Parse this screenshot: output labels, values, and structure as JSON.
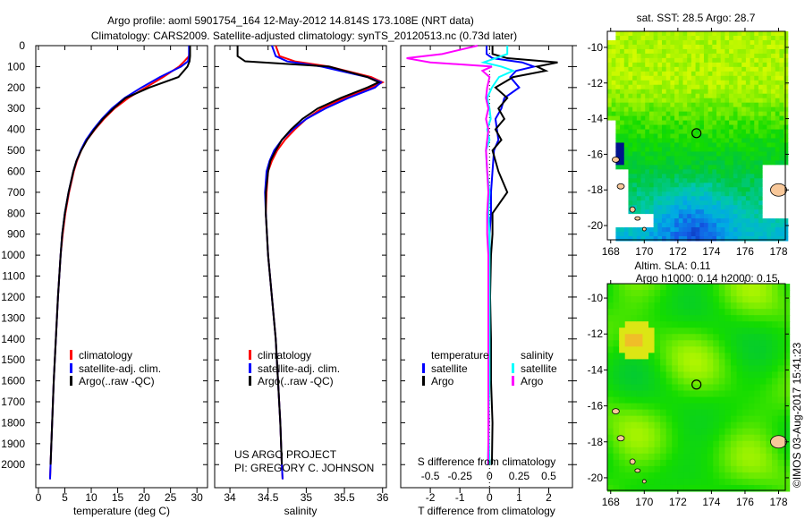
{
  "title": {
    "line1": "Argo profile: aoml 5901754_164 12-May-2012 14.814S 173.108E (NRT data)",
    "line2": "Climatology: CARS2009. Satellite-adjusted climatology: synTS_20120513.nc (0.73d later)"
  },
  "credits": {
    "project": "US ARGO PROJECT",
    "pi": "PI: GREGORY C. JOHNSON",
    "stamp": "©IMOS 03-Aug-2017 15:41:23"
  },
  "colors": {
    "clim": "#ff0000",
    "sat": "#0000ff",
    "argo": "#000000",
    "s_sat": "#00ffff",
    "s_argo": "#ff00ff"
  },
  "chart_data": [
    {
      "type": "line",
      "name": "temperature",
      "xlabel": "temperature (deg C)",
      "xlim": [
        -0.5,
        32
      ],
      "ylim": [
        2110,
        0
      ],
      "xticks": [
        0,
        5,
        10,
        15,
        20,
        25,
        30
      ],
      "yticks": [
        0,
        100,
        200,
        300,
        400,
        500,
        600,
        700,
        800,
        900,
        1000,
        1100,
        1200,
        1300,
        1400,
        1500,
        1600,
        1700,
        1800,
        1900,
        2000
      ],
      "legend": [
        "climatology",
        "satellite-adj. clim.",
        "Argo(..raw -QC)"
      ],
      "depth": [
        0,
        50,
        75,
        100,
        150,
        200,
        250,
        300,
        350,
        400,
        450,
        500,
        550,
        600,
        700,
        800,
        900,
        1000,
        1200,
        1400,
        1600,
        1800,
        2000,
        2070
      ],
      "series": [
        {
          "name": "climatology",
          "color_key": "clim",
          "values": [
            28.6,
            28.5,
            27.6,
            26.6,
            23.6,
            20.3,
            17.0,
            14.4,
            12.4,
            10.7,
            9.2,
            8.1,
            7.3,
            6.7,
            5.8,
            5.1,
            4.6,
            4.2,
            3.7,
            3.3,
            2.9,
            2.6,
            2.3,
            2.2
          ]
        },
        {
          "name": "satellite-adj. clim.",
          "color_key": "sat",
          "values": [
            28.5,
            28.5,
            28.3,
            27.0,
            23.0,
            19.5,
            16.3,
            13.9,
            12.0,
            10.4,
            9.0,
            8.0,
            7.2,
            6.6,
            5.7,
            5.0,
            4.5,
            4.2,
            3.7,
            3.3,
            2.9,
            2.6,
            2.3,
            2.2
          ]
        },
        {
          "name": "Argo(..raw -QC)",
          "color_key": "argo",
          "values": [
            28.7,
            28.7,
            28.6,
            28.2,
            26.5,
            21.0,
            16.5,
            14.2,
            12.2,
            10.6,
            9.2,
            8.1,
            7.2,
            6.6,
            5.7,
            5.0,
            4.5,
            4.2,
            3.7,
            3.3,
            2.9,
            2.6,
            2.3,
            null
          ]
        }
      ]
    },
    {
      "type": "line",
      "name": "salinity",
      "xlabel": "salinity",
      "xlim": [
        33.8,
        36.05
      ],
      "ylim": [
        2110,
        0
      ],
      "xticks": [
        34,
        34.5,
        35,
        35.5,
        36
      ],
      "legend": [
        "climatology",
        "satellite-adj. clim.",
        "Argo(..raw -QC)"
      ],
      "depth": [
        0,
        50,
        75,
        100,
        150,
        175,
        200,
        250,
        300,
        350,
        400,
        450,
        500,
        550,
        600,
        700,
        800,
        1000,
        1200,
        1400,
        1600,
        1800,
        2000,
        2070
      ],
      "series": [
        {
          "name": "climatology",
          "color_key": "clim",
          "values": [
            34.6,
            34.65,
            34.85,
            35.3,
            35.85,
            36.0,
            35.85,
            35.5,
            35.2,
            35.0,
            34.85,
            34.72,
            34.62,
            34.55,
            34.5,
            34.48,
            34.47,
            34.5,
            34.55,
            34.6,
            34.63,
            34.66,
            34.68,
            34.69
          ]
        },
        {
          "name": "satellite-adj. clim.",
          "color_key": "sat",
          "values": [
            34.55,
            34.6,
            34.75,
            35.2,
            35.8,
            35.98,
            35.9,
            35.55,
            35.25,
            35.0,
            34.82,
            34.68,
            34.58,
            34.52,
            34.48,
            34.46,
            34.47,
            34.5,
            34.55,
            34.6,
            34.63,
            34.66,
            34.68,
            34.69
          ]
        },
        {
          "name": "Argo(..raw -QC)",
          "color_key": "argo",
          "values": [
            34.1,
            34.1,
            34.2,
            35.3,
            35.8,
            35.95,
            35.8,
            35.45,
            35.15,
            34.95,
            34.8,
            34.68,
            34.6,
            34.53,
            34.5,
            34.47,
            34.47,
            34.5,
            34.55,
            34.6,
            34.63,
            34.66,
            34.68,
            null
          ]
        }
      ]
    },
    {
      "type": "line",
      "name": "difference",
      "xlabel": "T difference from climatology",
      "x2label": "S difference from climatology",
      "xlim": [
        -3,
        2.8
      ],
      "x2lim": [
        -0.75,
        0.7
      ],
      "ylim": [
        2110,
        0
      ],
      "xticks": [
        -2,
        -1,
        0,
        1,
        2
      ],
      "x2ticks": [
        -0.5,
        -0.25,
        0,
        0.25,
        0.5
      ],
      "x2ticklabels": [
        "-0.5",
        "-0.25",
        "0",
        "0.25",
        "0.5"
      ],
      "legend": {
        "t_title": "temperature",
        "s_title": "salinity",
        "t_sat": "satellite",
        "t_argo": "Argo",
        "s_sat": "satellite",
        "s_argo": "Argo"
      },
      "depth": [
        0,
        40,
        60,
        80,
        100,
        120,
        150,
        200,
        250,
        300,
        350,
        400,
        450,
        500,
        600,
        700,
        800,
        900,
        1000,
        1200,
        1400,
        1600,
        1800,
        2000
      ],
      "series": [
        {
          "name": "T satellite",
          "axis": "T",
          "color_key": "sat",
          "values": [
            -0.1,
            -0.1,
            0.1,
            1.1,
            1.5,
            0.9,
            0.7,
            1.0,
            0.5,
            0.4,
            0.2,
            0.25,
            0.3,
            0.15,
            0.1,
            0.05,
            0.05,
            0.0,
            0.0,
            0.0,
            0.0,
            -0.02,
            -0.03,
            -0.05
          ]
        },
        {
          "name": "T Argo",
          "axis": "T",
          "color_key": "argo",
          "values": [
            0.1,
            0.1,
            0.6,
            2.3,
            1.6,
            1.9,
            0.8,
            0.2,
            0.6,
            0.3,
            0.5,
            0.2,
            0.4,
            0.1,
            0.3,
            0.6,
            0.1,
            0.1,
            0.05,
            0.02,
            0.05,
            0.05,
            0.1,
            0.08
          ]
        },
        {
          "name": "S satellite",
          "axis": "S",
          "color_key": "s_sat",
          "values": [
            0.15,
            0.15,
            0.05,
            -0.05,
            0.1,
            0.2,
            0.08,
            0.02,
            -0.02,
            0.0,
            0.01,
            -0.02,
            0.0,
            -0.03,
            -0.02,
            0.0,
            -0.01,
            0.0,
            0.0,
            0.0,
            0.0,
            0.0,
            -0.01,
            0.0
          ]
        },
        {
          "name": "S Argo",
          "axis": "S",
          "color_key": "s_argo",
          "values": [
            -0.1,
            -0.4,
            -0.7,
            -0.5,
            0.02,
            -0.06,
            0.0,
            -0.02,
            -0.03,
            -0.01,
            -0.03,
            -0.01,
            -0.02,
            -0.03,
            -0.02,
            -0.01,
            -0.02,
            -0.02,
            -0.01,
            -0.01,
            -0.01,
            -0.01,
            -0.01,
            -0.01
          ]
        }
      ]
    },
    {
      "type": "heatmap",
      "name": "sst-map",
      "title": "sat. SST: 28.5 Argo: 28.7",
      "xlim": [
        167.8,
        178.4
      ],
      "ylim": [
        -20.8,
        -9.1
      ],
      "xticks": [
        168,
        170,
        172,
        174,
        176,
        178
      ],
      "yticks": [
        -10,
        -12,
        -14,
        -16,
        -18,
        -20
      ],
      "argo_position": [
        173.108,
        -14.814
      ]
    },
    {
      "type": "heatmap",
      "name": "sla-map",
      "title_line1": "Altim. SLA: 0.11",
      "title_line2": "Argo h1000: 0.14 h2000: 0.15",
      "xlim": [
        167.8,
        178.4
      ],
      "ylim": [
        -20.7,
        -9.2
      ],
      "xticks": [
        168,
        170,
        172,
        174,
        176,
        178
      ],
      "yticks": [
        -10,
        -12,
        -14,
        -16,
        -18,
        -20
      ],
      "argo_position": [
        173.108,
        -14.814
      ]
    }
  ]
}
